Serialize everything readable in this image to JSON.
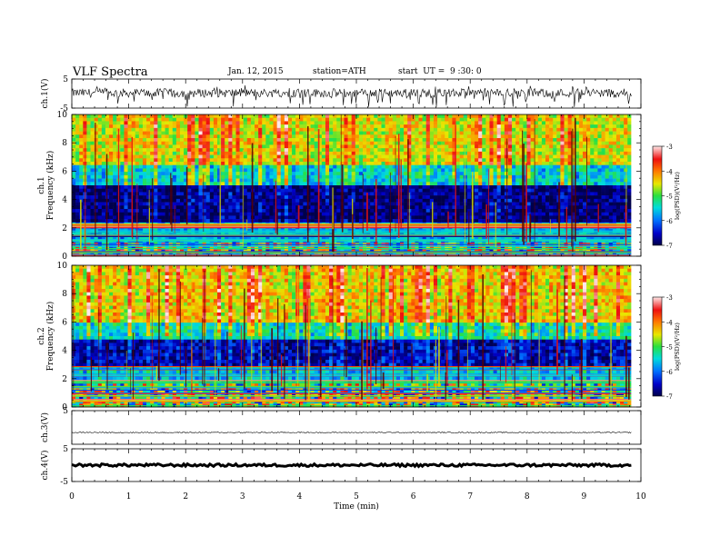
{
  "header": {
    "title": "VLF Spectra",
    "date": "Jan. 12, 2015",
    "station": "station=ATH",
    "start": "start  UT =  9 :30: 0"
  },
  "chart_data": [
    {
      "type": "line",
      "panel": "ch1-waveform",
      "ylabel": "ch.1(V)",
      "yticks": [
        "5",
        "-5"
      ],
      "ylim": [
        -5,
        5
      ],
      "xlim": [
        0,
        10
      ],
      "data_x_end": 9.83,
      "baseline": 0.2,
      "amplitude": 1.5,
      "spikes": "frequent negative spikes",
      "color": "#000000"
    },
    {
      "type": "heatmap",
      "panel": "ch1-spectrogram",
      "ylabel": [
        "ch.1",
        "Frequency  (kHz)"
      ],
      "yticks": [
        "0",
        "2",
        "4",
        "6",
        "8",
        "10"
      ],
      "ylim": [
        0,
        10
      ],
      "xlim": [
        0,
        10
      ],
      "data_x_end": 9.83,
      "bands": [
        {
          "f0": 0.0,
          "f1": 0.9,
          "level": "multi-colour horizontal lines"
        },
        {
          "f0": 0.9,
          "f1": 2.3,
          "level": -5.8
        },
        {
          "f0": 2.3,
          "f1": 5.0,
          "level": -6.8
        },
        {
          "f0": 5.0,
          "f1": 6.5,
          "level": -5.5
        },
        {
          "f0": 6.5,
          "f1": 10.0,
          "level": -4.5
        }
      ],
      "colorbar": {
        "label": "log(PSD)(V²/Hz)",
        "ticks": [
          "-3",
          "-4",
          "-5",
          "-6",
          "-7"
        ],
        "range": [
          -7,
          -3
        ]
      }
    },
    {
      "type": "heatmap",
      "panel": "ch2-spectrogram",
      "ylabel": [
        "ch.2",
        "Frequency  (kHz)"
      ],
      "yticks": [
        "0",
        "2",
        "4",
        "6",
        "8",
        "10"
      ],
      "ylim": [
        0,
        10
      ],
      "xlim": [
        0,
        10
      ],
      "data_x_end": 9.83,
      "bands": [
        {
          "f0": 0.0,
          "f1": 1.6,
          "level": "multi-colour horizontal lines"
        },
        {
          "f0": 1.6,
          "f1": 2.9,
          "level": -5.7
        },
        {
          "f0": 2.9,
          "f1": 4.8,
          "level": -6.6
        },
        {
          "f0": 4.8,
          "f1": 6.0,
          "level": -5.4
        },
        {
          "f0": 6.0,
          "f1": 10.0,
          "level": -4.4
        }
      ],
      "colorbar": {
        "label": "log(PSD)(V²/Hz)",
        "ticks": [
          "-3",
          "-4",
          "-5",
          "-6",
          "-7"
        ],
        "range": [
          -7,
          -3
        ]
      }
    },
    {
      "type": "line",
      "panel": "ch3-waveform",
      "ylabel": "ch.3(V)",
      "yticks": [
        "5"
      ],
      "ylim": [
        -5,
        5
      ],
      "xlim": [
        0,
        10
      ],
      "data_x_end": 9.83,
      "baseline": -1.5,
      "amplitude": 0.15,
      "color": "#000000"
    },
    {
      "type": "line",
      "panel": "ch4-waveform",
      "ylabel": "ch.4(V)",
      "yticks": [
        "5",
        "-5"
      ],
      "ylim": [
        -5,
        5
      ],
      "xlim": [
        0,
        10
      ],
      "data_x_end": 9.83,
      "baseline": 0,
      "amplitude": 0.4,
      "color": "#000000"
    }
  ],
  "xaxis": {
    "label": "Time  (min)",
    "ticks": [
      "0",
      "1",
      "2",
      "3",
      "4",
      "5",
      "6",
      "7",
      "8",
      "9",
      "10"
    ]
  }
}
